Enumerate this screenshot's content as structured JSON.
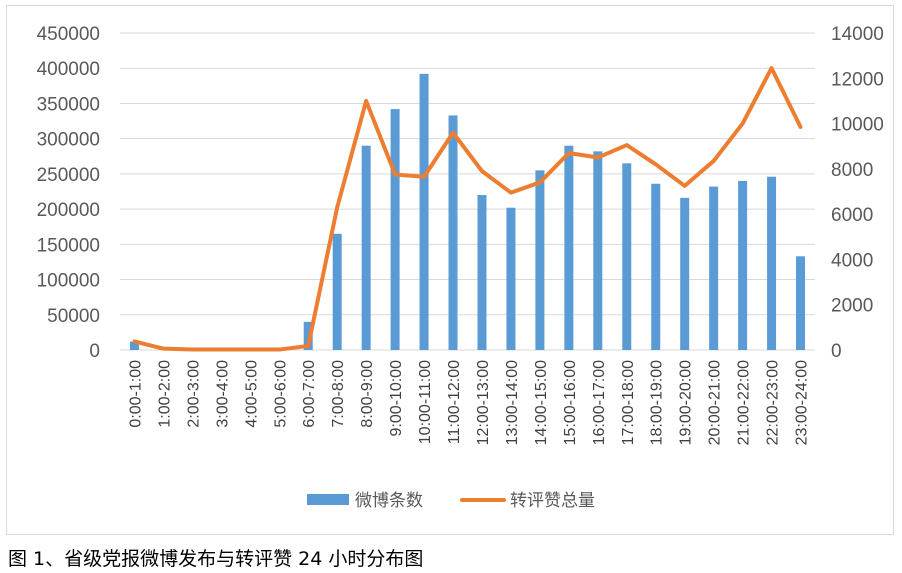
{
  "caption": "图 1、省级党报微博发布与转评赞 24 小时分布图",
  "colors": {
    "bar": "#5b9bd5",
    "line": "#ed7d31",
    "grid": "#d9d9d9",
    "axis_text": "#595959"
  },
  "chart_data": {
    "type": "bar",
    "title": "",
    "grid": true,
    "legend": "bottom",
    "categories": [
      "0:00-1:00",
      "1:00-2:00",
      "2:00-3:00",
      "3:00-4:00",
      "4:00-5:00",
      "5:00-6:00",
      "6:00-7:00",
      "7:00-8:00",
      "8:00-9:00",
      "9:00-10:00",
      "10:00-11:00",
      "11:00-12:00",
      "12:00-13:00",
      "13:00-14:00",
      "14:00-15:00",
      "15:00-16:00",
      "16:00-17:00",
      "17:00-18:00",
      "18:00-19:00",
      "19:00-20:00",
      "20:00-21:00",
      "21:00-22:00",
      "22:00-23:00",
      "23:00-24:00"
    ],
    "left_axis": {
      "ylim": [
        0,
        450000
      ],
      "ticks": [
        "450000",
        "400000",
        "350000",
        "300000",
        "250000",
        "200000",
        "150000",
        "100000",
        "50000",
        "0"
      ]
    },
    "right_axis": {
      "ylim": [
        0,
        14000
      ],
      "ticks": [
        "14000",
        "12000",
        "10000",
        "8000",
        "6000",
        "4000",
        "2000",
        "0"
      ]
    },
    "series": [
      {
        "name": "微博条数",
        "type": "bar",
        "axis": "left",
        "values": [
          12000,
          1500,
          500,
          500,
          500,
          800,
          40000,
          165000,
          290000,
          342000,
          392000,
          333000,
          220000,
          202000,
          255000,
          290000,
          282000,
          265000,
          236000,
          216000,
          232000,
          240000,
          246000,
          133000
        ]
      },
      {
        "name": "转评赞总量",
        "type": "line",
        "axis": "right",
        "values": [
          380,
          60,
          20,
          20,
          20,
          20,
          180,
          6300,
          11000,
          7750,
          7650,
          9600,
          7900,
          6950,
          7400,
          8700,
          8500,
          9050,
          8200,
          7250,
          8350,
          10000,
          12450,
          9850
        ]
      }
    ]
  }
}
